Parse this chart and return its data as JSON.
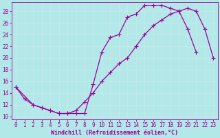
{
  "xlabel": "Windchill (Refroidissement éolien,°C)",
  "bg_color": "#b3e8e8",
  "line_color": "#990099",
  "xlim": [
    -0.5,
    23.5
  ],
  "ylim": [
    9.5,
    29.5
  ],
  "xticks": [
    0,
    1,
    2,
    3,
    4,
    5,
    6,
    7,
    8,
    9,
    10,
    11,
    12,
    13,
    14,
    15,
    16,
    17,
    18,
    19,
    20,
    21,
    22,
    23
  ],
  "yticks": [
    10,
    12,
    14,
    16,
    18,
    20,
    22,
    24,
    26,
    28
  ],
  "grid_color": "#c8e8e8",
  "line1_x": [
    0,
    1,
    2,
    3,
    4,
    5,
    6,
    7,
    8,
    9,
    10,
    11,
    12,
    13,
    14,
    15,
    16,
    17,
    18,
    19,
    20,
    21
  ],
  "line1_y": [
    15,
    13,
    12,
    11.5,
    11,
    10.5,
    10.5,
    10.5,
    10.5,
    15.5,
    21,
    23.5,
    24,
    27,
    27.5,
    29,
    29,
    29,
    28.5,
    28,
    25,
    21
  ],
  "line2_x": [
    0,
    2,
    3,
    4,
    5,
    6,
    7,
    8,
    9,
    10,
    11,
    12,
    13,
    14,
    15,
    16,
    17,
    18,
    19,
    20,
    21,
    22,
    23
  ],
  "line2_y": [
    15,
    12,
    11.5,
    11,
    10.5,
    10.5,
    11,
    12.5,
    14,
    16,
    17.5,
    19,
    20,
    22,
    24,
    25.5,
    26.5,
    27.5,
    28,
    28.5,
    28,
    25,
    20
  ],
  "marker": "+",
  "markersize": 4,
  "linewidth": 0.9,
  "tick_fontsize": 5.5,
  "label_fontsize": 6,
  "figwidth": 3.2,
  "figheight": 2.0,
  "dpi": 100
}
